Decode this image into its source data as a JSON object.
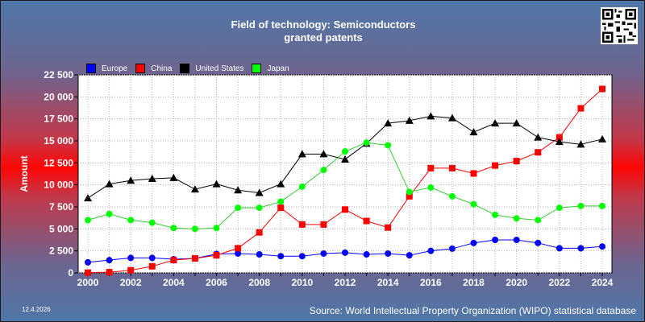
{
  "header": {
    "title_line1": "Field of technology: Semiconductors",
    "title_line2": "granted patents",
    "qr_icon": "qr-code-icon"
  },
  "footer": {
    "date": "12.4.2026",
    "source": "Source: World Intellectual Property Organization (WIPO) statistical database"
  },
  "chart_data": {
    "type": "line",
    "title": "Field of technology: Semiconductors granted patents",
    "xlabel": "",
    "ylabel": "Amount",
    "ylim": [
      0,
      22500
    ],
    "yticks": [
      "0",
      "2 500",
      "5 000",
      "7 500",
      "10 000",
      "12 500",
      "15 000",
      "17 500",
      "20 000",
      "22 500"
    ],
    "xticks": [
      2000,
      2002,
      2004,
      2006,
      2008,
      2010,
      2012,
      2014,
      2016,
      2018,
      2020,
      2022,
      2024
    ],
    "grid": true,
    "legend_position": "top-left",
    "x": [
      2000,
      2001,
      2002,
      2003,
      2004,
      2005,
      2006,
      2007,
      2008,
      2009,
      2010,
      2011,
      2012,
      2013,
      2014,
      2015,
      2016,
      2017,
      2018,
      2019,
      2020,
      2021,
      2022,
      2023,
      2024
    ],
    "series": [
      {
        "name": "Europe",
        "color": "#0000ff",
        "marker": "circle",
        "values": [
          1200,
          1450,
          1700,
          1700,
          1550,
          1650,
          2150,
          2200,
          2100,
          1900,
          1900,
          2200,
          2300,
          2100,
          2200,
          2000,
          2500,
          2750,
          3400,
          3750,
          3750,
          3400,
          2800,
          2800,
          3000
        ]
      },
      {
        "name": "China",
        "color": "#ff0000",
        "marker": "square",
        "values": [
          30,
          80,
          300,
          750,
          1450,
          1650,
          2000,
          2800,
          4600,
          7400,
          5500,
          5500,
          7200,
          5900,
          5150,
          8700,
          11900,
          11900,
          11300,
          12200,
          12700,
          13700,
          15400,
          18700,
          20900
        ]
      },
      {
        "name": "United States",
        "color": "#000000",
        "marker": "triangle",
        "values": [
          8500,
          10100,
          10500,
          10700,
          10800,
          9500,
          10100,
          9400,
          9100,
          10100,
          13500,
          13500,
          12900,
          14700,
          17000,
          17300,
          17800,
          17600,
          16000,
          17000,
          17000,
          15400,
          14900,
          14600,
          15200
        ]
      },
      {
        "name": "Japan",
        "color": "#00ff00",
        "marker": "circle",
        "values": [
          6000,
          6700,
          6000,
          5700,
          5100,
          5000,
          5100,
          7400,
          7400,
          8100,
          9800,
          11700,
          13800,
          14800,
          14500,
          9200,
          9700,
          8700,
          7800,
          6600,
          6200,
          6000,
          7400,
          7600,
          7600
        ]
      }
    ]
  }
}
